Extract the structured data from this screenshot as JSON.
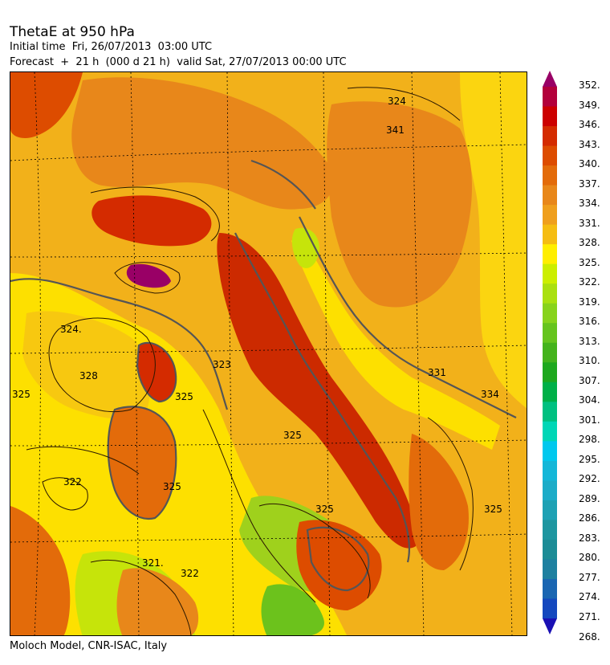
{
  "header": {
    "title": "ThetaE at 950 hPa",
    "initial_time": "Initial time  Fri, 26/07/2013  03:00 UTC",
    "forecast": "Forecast  +  21 h  (000 d 21 h)  valid Sat, 27/07/2013 00:00 UTC"
  },
  "footer": {
    "credit": "Moloch Model, CNR-ISAC, Italy"
  },
  "map": {
    "contour_labels": [
      "324.",
      "328",
      "325",
      "323",
      "325",
      "325",
      "325",
      "322",
      "321.",
      "322",
      "341",
      "324",
      "331",
      "334",
      "325",
      "325"
    ]
  },
  "legend": {
    "labels": [
      "352.",
      "349.",
      "346.",
      "343.",
      "340.",
      "337.",
      "334.",
      "331.",
      "328.",
      "325.",
      "322.",
      "319.",
      "316.",
      "313.",
      "310.",
      "307.",
      "304.",
      "301.",
      "298.",
      "295.",
      "292.",
      "289.",
      "286.",
      "283.",
      "280.",
      "277.",
      "274.",
      "271.",
      "268."
    ],
    "colors": [
      "#990066",
      "#b3003b",
      "#cc0000",
      "#d42b00",
      "#dd4c00",
      "#e36b0a",
      "#e8871a",
      "#ef9f1d",
      "#f5bd12",
      "#ffee00",
      "#ccee00",
      "#aae010",
      "#88d31c",
      "#66c41e",
      "#44b31c",
      "#1ea81e",
      "#00b048",
      "#00c080",
      "#00d6b6",
      "#00c8ee",
      "#14b7d8",
      "#1cacc8",
      "#1ea1b4",
      "#1e96a0",
      "#1c8c96",
      "#1e80a0",
      "#1a66b2",
      "#1448be",
      "#1a10b4"
    ]
  }
}
